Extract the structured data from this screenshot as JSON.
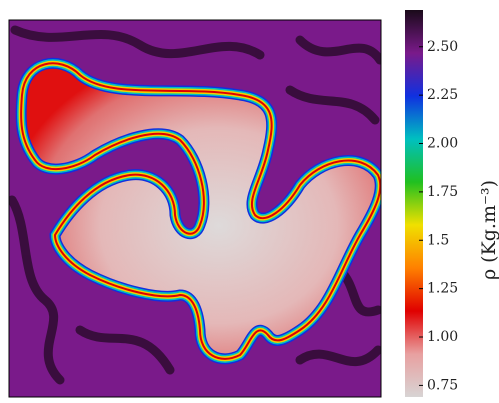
{
  "chart_data": {
    "type": "heatmap",
    "colorbar_label": "ρ (Kg.m⁻³)",
    "clim": [
      0.69,
      2.69
    ],
    "cticks": [
      {
        "value": 0.75,
        "label": "0.75"
      },
      {
        "value": 1.0,
        "label": "1.00"
      },
      1.25,
      1.5,
      1.75,
      {
        "value": 2.0,
        "label": "2.00"
      },
      2.25,
      {
        "value": 2.5,
        "label": "2.50"
      }
    ],
    "colormap": [
      "#d8d4d4",
      "#e8a0a0",
      "#e00000",
      "#ff8000",
      "#f0e000",
      "#20c020",
      "#00c0c0",
      "#1030e0",
      "#7a1a8a",
      "#1a0a1a"
    ]
  }
}
